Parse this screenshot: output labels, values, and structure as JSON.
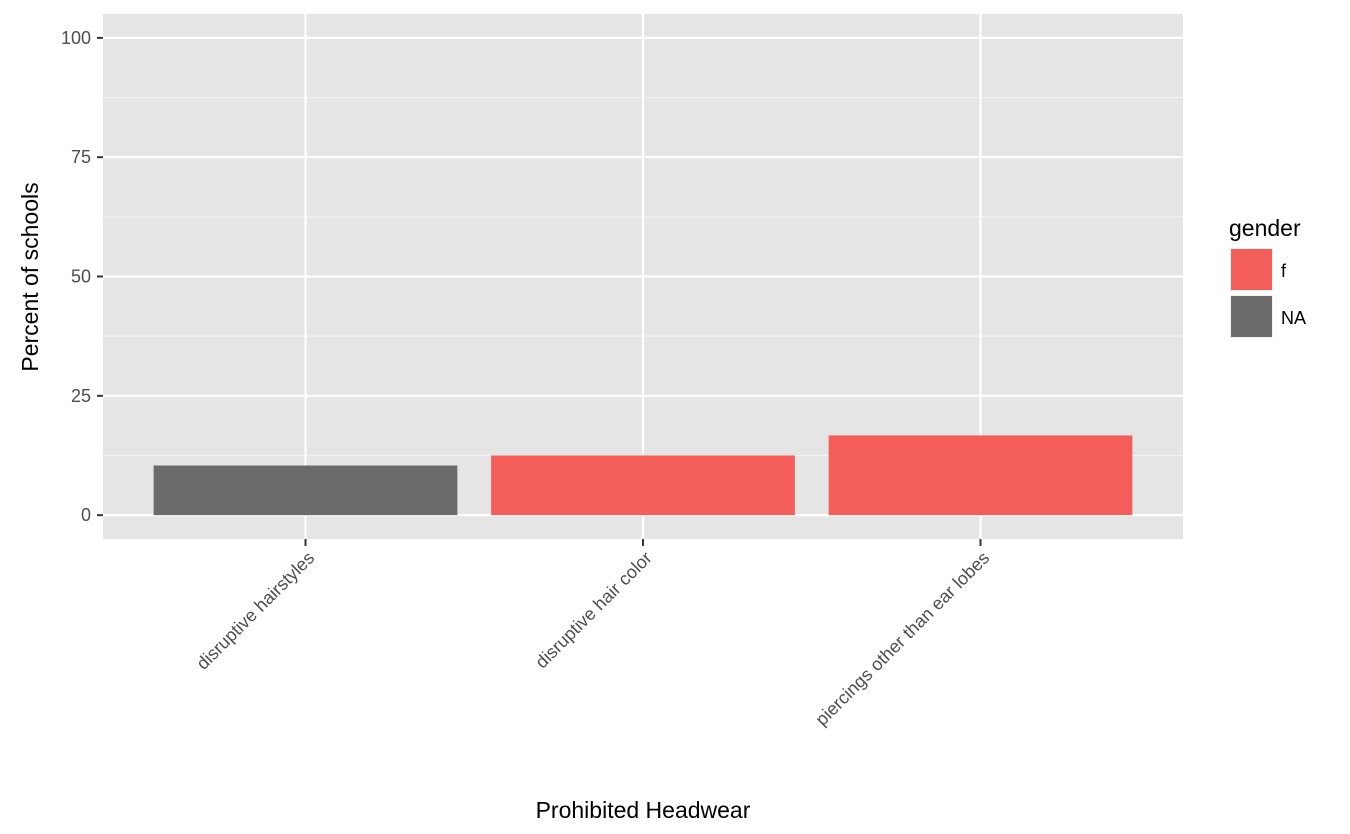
{
  "chart_data": {
    "type": "bar",
    "title": "",
    "xlabel": "Prohibited Headwear",
    "ylabel": "Percent of schools",
    "ylim": [
      -5,
      105
    ],
    "yticks": [
      0,
      25,
      50,
      75,
      100
    ],
    "grid": true,
    "legend_position": "right",
    "legend_title": "gender",
    "legend": [
      {
        "label": "f",
        "color": "#F35E5A"
      },
      {
        "label": "NA",
        "color": "#6B6B6B"
      }
    ],
    "categories": [
      "disruptive hairstyles",
      "disruptive  hair color",
      "piercings other than ear lobes"
    ],
    "values": [
      10.4,
      12.5,
      16.7
    ],
    "groups": [
      "NA",
      "f",
      "f"
    ]
  }
}
